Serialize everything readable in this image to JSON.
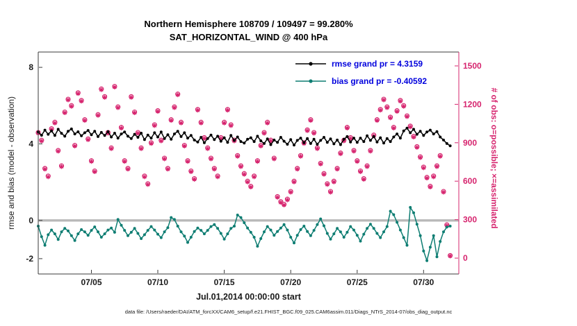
{
  "colors": {
    "obs": "#d6246e",
    "bias": "#0d7d72",
    "rmse": "#000000",
    "legend_text": "#0000dd",
    "zero_line": "#b9b9b9",
    "axis": "#3a3a3a",
    "tick_text": "#1a1a1a"
  },
  "legend": {
    "text_color": "#0000dd",
    "items": [
      {
        "label": "rmse grand pr = 4.3159",
        "color": "#000000"
      },
      {
        "label": "bias grand pr = -0.40592",
        "color": "#0d7d72"
      }
    ]
  },
  "footer": "data file: /Users/raeder/DAI/ATM_forcXX/CAM6_setup/f.e21.FHIST_BGC.f09_025.CAM6assim.011/Diags_NTrS_2014-07/obs_diag_output.nc",
  "chart_data": {
    "type": "line",
    "title_line1": "Northern Hemisphere 108709 / 109497 = 99.280%",
    "title_line2": "SAT_HORIZONTAL_WIND @ 400 hPa",
    "xlabel": "Jul.01,2014 00:00:00 start",
    "ylabel_left": "rmse and bias (model - observation)",
    "ylabel_right": "# of obs: o=possible; ×=assimilated",
    "grand_rmse": 4.3159,
    "grand_bias": -0.40592,
    "possible_total": 109497,
    "assimilated_total": 108709,
    "percent_assimilated": 99.28,
    "x_ticks": {
      "days": [
        5,
        10,
        15,
        20,
        25,
        30
      ],
      "labels": [
        "07/05",
        "07/10",
        "07/15",
        "07/20",
        "07/25",
        "07/30"
      ]
    },
    "left_ticks": [
      8,
      4,
      0,
      -2
    ],
    "left_lim": [
      -2.8,
      8.8
    ],
    "right_ticks": [
      0,
      300,
      600,
      900,
      1200,
      1500
    ],
    "right_lim": [
      -124,
      1608
    ],
    "x_lim": [
      1.0,
      32.65
    ],
    "x_start_day": 1.0,
    "x_step_days": 0.25,
    "zero_line": {
      "value": 0,
      "color": "#b9b9b9",
      "width": 3.4
    },
    "series": [
      {
        "name": "possible",
        "axis": "right",
        "marker": "circle",
        "line": false,
        "color": "#d6246e",
        "values": [
          980,
          920,
          700,
          640,
          1010,
          1060,
          840,
          720,
          1140,
          1240,
          1190,
          880,
          1290,
          1230,
          1080,
          930,
          760,
          680,
          1120,
          1320,
          1260,
          980,
          860,
          1340,
          1180,
          1020,
          760,
          700,
          1260,
          1140,
          980,
          860,
          640,
          580,
          900,
          1040,
          1150,
          920,
          780,
          700,
          1080,
          1180,
          1280,
          1060,
          880,
          760,
          680,
          620,
          1160,
          1060,
          940,
          860,
          780,
          700,
          640,
          940,
          1060,
          1160,
          1040,
          920,
          800,
          720,
          660,
          600,
          560,
          640,
          760,
          880,
          980,
          1060,
          920,
          780,
          480,
          440,
          420,
          460,
          520,
          600,
          700,
          800,
          900,
          1000,
          1080,
          980,
          860,
          740,
          660,
          580,
          520,
          600,
          700,
          820,
          920,
          1020,
          940,
          840,
          760,
          680,
          620,
          720,
          840,
          960,
          1080,
          1160,
          1240,
          1180,
          1100,
          1020,
          1150,
          1230,
          1190,
          1110,
          1030,
          950,
          870,
          790,
          710,
          630,
          560,
          640,
          720,
          800,
          520,
          260,
          20
        ]
      },
      {
        "name": "assimilated",
        "axis": "right",
        "marker": "asterisk",
        "line": false,
        "color": "#d6246e",
        "values": [
          974,
          914,
          694,
          634,
          1004,
          1054,
          834,
          714,
          1134,
          1234,
          1184,
          874,
          1284,
          1224,
          1074,
          924,
          754,
          674,
          1114,
          1314,
          1254,
          974,
          854,
          1334,
          1174,
          1014,
          754,
          694,
          1254,
          1134,
          974,
          854,
          634,
          574,
          894,
          1034,
          1144,
          914,
          774,
          694,
          1074,
          1174,
          1274,
          1054,
          874,
          754,
          674,
          614,
          1154,
          1054,
          934,
          854,
          774,
          694,
          634,
          934,
          1054,
          1154,
          1034,
          914,
          794,
          714,
          654,
          594,
          554,
          634,
          754,
          874,
          974,
          1054,
          914,
          774,
          474,
          434,
          414,
          454,
          514,
          594,
          694,
          794,
          894,
          994,
          1074,
          974,
          854,
          734,
          654,
          574,
          514,
          594,
          694,
          814,
          914,
          1014,
          934,
          834,
          754,
          674,
          614,
          714,
          834,
          954,
          1074,
          1154,
          1234,
          1174,
          1094,
          1014,
          1144,
          1224,
          1184,
          1104,
          1024,
          944,
          864,
          784,
          704,
          624,
          554,
          634,
          714,
          794,
          514,
          254,
          16
        ]
      },
      {
        "name": "rmse",
        "axis": "left",
        "marker": "dot",
        "line": true,
        "color": "#000000",
        "values": [
          4.62,
          4.45,
          4.72,
          4.5,
          4.68,
          4.44,
          4.76,
          4.55,
          4.4,
          4.66,
          4.78,
          4.52,
          4.63,
          4.42,
          4.58,
          4.7,
          4.48,
          4.66,
          4.38,
          4.6,
          4.44,
          4.64,
          4.36,
          4.56,
          4.3,
          4.52,
          4.62,
          4.4,
          4.28,
          4.5,
          4.34,
          4.56,
          4.22,
          4.46,
          4.3,
          4.58,
          4.36,
          4.62,
          4.28,
          4.48,
          4.24,
          4.52,
          4.66,
          4.38,
          4.58,
          4.3,
          4.44,
          4.2,
          4.1,
          4.34,
          4.06,
          4.28,
          4.46,
          4.22,
          4.4,
          4.14,
          4.32,
          4.08,
          4.44,
          4.18,
          4.36,
          4.12,
          4.04,
          4.24,
          4.32,
          4.12,
          4.4,
          4.16,
          4.02,
          4.26,
          3.96,
          4.2,
          4.08,
          4.34,
          4.14,
          3.98,
          4.22,
          3.94,
          4.18,
          4.3,
          4.06,
          4.28,
          4.02,
          4.24,
          3.98,
          4.18,
          4.34,
          4.08,
          4.26,
          4.0,
          4.2,
          3.96,
          4.24,
          4.38,
          4.1,
          4.3,
          4.08,
          4.3,
          4.12,
          4.42,
          4.18,
          4.38,
          4.1,
          4.32,
          4.04,
          4.28,
          4.12,
          4.36,
          4.52,
          4.3,
          4.68,
          4.82,
          4.58,
          4.76,
          4.5,
          4.66,
          4.44,
          4.62,
          4.72,
          4.52,
          4.64,
          4.36,
          4.2,
          4.02,
          3.9
        ]
      },
      {
        "name": "bias",
        "axis": "left",
        "marker": "dot",
        "line": true,
        "color": "#0d7d72",
        "values": [
          -0.3,
          -0.85,
          -1.3,
          -0.75,
          -0.5,
          -0.7,
          -1.0,
          -0.6,
          -0.42,
          -0.55,
          -0.8,
          -1.05,
          -0.7,
          -0.48,
          -0.6,
          -0.78,
          -0.52,
          -0.34,
          -0.6,
          -0.88,
          -0.7,
          -0.5,
          -0.4,
          -0.62,
          0.05,
          -0.25,
          -0.52,
          -0.8,
          -0.62,
          -0.42,
          -0.68,
          -0.95,
          -0.75,
          -0.52,
          -0.32,
          -0.5,
          -0.72,
          -0.9,
          -0.6,
          -0.38,
          0.15,
          0.05,
          -0.3,
          -0.6,
          -0.82,
          -1.15,
          -0.88,
          -0.58,
          -0.4,
          -0.52,
          -0.7,
          -0.52,
          -0.32,
          -0.22,
          -0.42,
          -0.68,
          -0.98,
          -0.7,
          -0.42,
          -0.3,
          0.28,
          0.15,
          -0.12,
          -0.4,
          -0.62,
          -0.88,
          -1.35,
          -0.95,
          -0.6,
          -0.32,
          -0.5,
          -0.78,
          -0.58,
          -0.4,
          -0.22,
          -0.5,
          -0.88,
          -1.18,
          -0.78,
          -0.48,
          -0.3,
          -0.58,
          -0.8,
          -0.52,
          -0.22,
          0.08,
          -0.28,
          -0.68,
          -0.98,
          -0.7,
          -0.42,
          -0.6,
          -0.88,
          -0.62,
          -0.32,
          -0.5,
          -0.78,
          -1.08,
          -0.72,
          -0.42,
          -0.2,
          -0.42,
          -0.68,
          -0.9,
          -0.6,
          -0.32,
          0.48,
          0.3,
          -0.1,
          -0.5,
          -0.9,
          -1.3,
          0.68,
          0.4,
          -0.2,
          -0.8,
          -1.6,
          -2.1,
          -1.4,
          -0.8,
          -1.9,
          -1.1,
          -0.6,
          -0.35,
          -0.3
        ]
      }
    ]
  }
}
